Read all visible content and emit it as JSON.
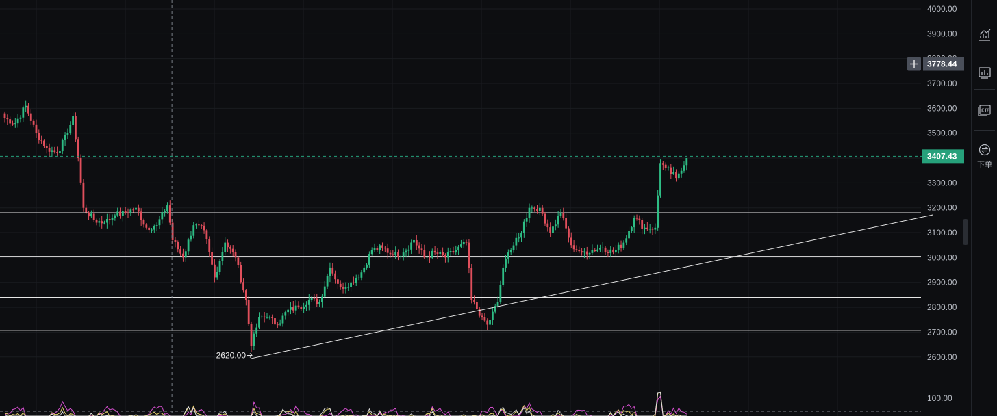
{
  "chart_data": {
    "type": "candlestick",
    "y_axis": {
      "ticks": [
        "4000.00",
        "3900.00",
        "3800.00",
        "3700.00",
        "3600.00",
        "3500.00",
        "3400.00",
        "3300.00",
        "3200.00",
        "3100.00",
        "3000.00",
        "2900.00",
        "2800.00",
        "2700.00",
        "2600.00"
      ],
      "range": [
        2575,
        4030
      ]
    },
    "osc_axis": {
      "tick": "100.00"
    },
    "crosshair_price": {
      "label": "3778.44",
      "value": 3778.44
    },
    "last_price": {
      "label": "3407.43",
      "value": 3407.43
    },
    "low_marker": {
      "label": "2620.00",
      "value": 2620,
      "bar": 94
    },
    "horizontal_lines": [
      3180,
      3005,
      2840,
      2707
    ],
    "trend_line": {
      "from": {
        "bar": 94,
        "price": 2594
      },
      "to": {
        "bar": 354,
        "price": 3172
      }
    },
    "crosshair_bar": 64,
    "key_closes": [
      [
        0,
        3560
      ],
      [
        4,
        3540
      ],
      [
        8,
        3610
      ],
      [
        12,
        3500
      ],
      [
        16,
        3440
      ],
      [
        20,
        3420
      ],
      [
        24,
        3500
      ],
      [
        26,
        3570
      ],
      [
        28,
        3400
      ],
      [
        30,
        3200
      ],
      [
        34,
        3150
      ],
      [
        38,
        3140
      ],
      [
        42,
        3170
      ],
      [
        46,
        3180
      ],
      [
        50,
        3200
      ],
      [
        54,
        3120
      ],
      [
        58,
        3130
      ],
      [
        62,
        3210
      ],
      [
        64,
        3070
      ],
      [
        68,
        3000
      ],
      [
        72,
        3130
      ],
      [
        76,
        3110
      ],
      [
        80,
        2920
      ],
      [
        84,
        3060
      ],
      [
        88,
        3000
      ],
      [
        92,
        2830
      ],
      [
        94,
        2640
      ],
      [
        97,
        2760
      ],
      [
        100,
        2760
      ],
      [
        104,
        2730
      ],
      [
        108,
        2790
      ],
      [
        112,
        2800
      ],
      [
        116,
        2830
      ],
      [
        120,
        2820
      ],
      [
        124,
        2960
      ],
      [
        128,
        2880
      ],
      [
        132,
        2900
      ],
      [
        136,
        2940
      ],
      [
        140,
        3030
      ],
      [
        144,
        3040
      ],
      [
        148,
        3010
      ],
      [
        152,
        3020
      ],
      [
        156,
        3070
      ],
      [
        160,
        3000
      ],
      [
        164,
        3020
      ],
      [
        168,
        3000
      ],
      [
        172,
        3030
      ],
      [
        176,
        3060
      ],
      [
        178,
        2830
      ],
      [
        182,
        2760
      ],
      [
        184,
        2730
      ],
      [
        188,
        2820
      ],
      [
        190,
        2960
      ],
      [
        192,
        3020
      ],
      [
        196,
        3080
      ],
      [
        200,
        3200
      ],
      [
        204,
        3200
      ],
      [
        208,
        3100
      ],
      [
        212,
        3180
      ],
      [
        216,
        3050
      ],
      [
        220,
        3020
      ],
      [
        224,
        3030
      ],
      [
        228,
        3040
      ],
      [
        232,
        3020
      ],
      [
        236,
        3060
      ],
      [
        240,
        3160
      ],
      [
        244,
        3120
      ],
      [
        248,
        3120
      ],
      [
        250,
        3380
      ],
      [
        252,
        3360
      ],
      [
        256,
        3320
      ],
      [
        260,
        3400
      ]
    ]
  },
  "toolbar": {
    "items": [
      {
        "icon": "trend-chart-icon"
      },
      {
        "icon": "indicator-icon"
      },
      {
        "icon": "etf-icon"
      },
      {
        "icon": "swap-icon",
        "label": "下单"
      }
    ]
  },
  "colors": {
    "background": "#0d0e11",
    "grid": "#1a1c21",
    "up": "#2ebd85",
    "down": "#e04f5c",
    "level_line": "#e6e6e6",
    "crosshair_tag": "#4a4f5a",
    "price_tag": "#26a17b",
    "osc_pink": "#d64fd0",
    "osc_yellow": "#e3d06c",
    "osc_white": "#dcdcdc"
  }
}
